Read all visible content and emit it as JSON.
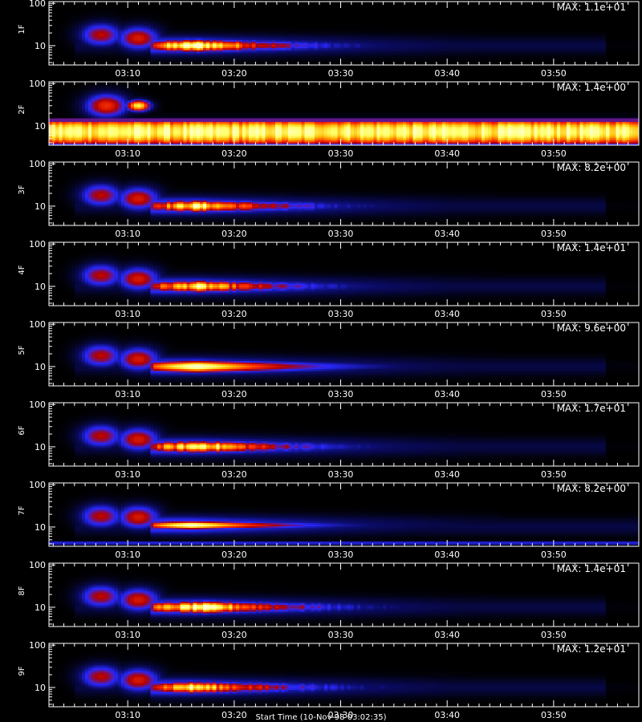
{
  "chart_data": {
    "type": "heatmap",
    "x_tick_labels": [
      "03:10",
      "03:20",
      "03:30",
      "03:40",
      "03:50"
    ],
    "x_tick_values_min": [
      10,
      20,
      30,
      40,
      50
    ],
    "x_range_min": [
      2.6,
      58.0
    ],
    "x_axis_title": "Start Time (10-Nov-98 03:02:35)",
    "y_scale": "log",
    "y_range": [
      3.5,
      110
    ],
    "y_tick_labels": [
      "100",
      "10"
    ],
    "y_tick_values": [
      100,
      10
    ],
    "colormap": [
      "#000000",
      "#0a0a60",
      "#2828ff",
      "#b00000",
      "#ff3000",
      "#ffb000",
      "#ffff60",
      "#ffffd0"
    ],
    "panels": [
      {
        "label": "1F",
        "max_label": "MAX: 1.1e+01",
        "max": 11,
        "features": [
          {
            "type": "faint_bg",
            "y_center": 10,
            "end": 55
          },
          {
            "type": "pre_blob",
            "t": 7.5,
            "y": 18,
            "intensity": 0.45
          },
          {
            "type": "pre_blob",
            "t": 11.0,
            "y": 15,
            "intensity": 0.5
          },
          {
            "type": "flare",
            "t_start": 12.0,
            "t_peak": 16.5,
            "t_end": 30.0,
            "y_center": 10,
            "intensity": 0.92,
            "vstreaks": true
          }
        ]
      },
      {
        "label": "2F",
        "max_label": "MAX: 1.4e+00",
        "max": 1.4,
        "features": [
          {
            "type": "faint_bg",
            "y_center": 10,
            "end": 58
          },
          {
            "type": "pre_blob",
            "t": 8.0,
            "y": 30,
            "intensity": 0.55
          },
          {
            "type": "hot_blob",
            "t": 11.0,
            "y": 30,
            "intensity": 0.85
          },
          {
            "type": "band",
            "y_low": 4.0,
            "y_high": 13,
            "intensity": 0.9
          }
        ]
      },
      {
        "label": "3F",
        "max_label": "MAX: 8.2e+00",
        "max": 8.2,
        "features": [
          {
            "type": "faint_bg",
            "y_center": 10,
            "end": 55
          },
          {
            "type": "pre_blob",
            "t": 7.5,
            "y": 18,
            "intensity": 0.45
          },
          {
            "type": "pre_blob",
            "t": 11.0,
            "y": 15,
            "intensity": 0.5
          },
          {
            "type": "flare",
            "t_start": 12.0,
            "t_peak": 16.5,
            "t_end": 31.0,
            "y_center": 10,
            "intensity": 0.82,
            "vstreaks": true
          }
        ]
      },
      {
        "label": "4F",
        "max_label": "MAX: 1.4e+01",
        "max": 14,
        "features": [
          {
            "type": "faint_bg",
            "y_center": 10,
            "end": 55
          },
          {
            "type": "pre_blob",
            "t": 7.5,
            "y": 18,
            "intensity": 0.45
          },
          {
            "type": "pre_blob",
            "t": 11.0,
            "y": 15,
            "intensity": 0.5
          },
          {
            "type": "flare",
            "t_start": 12.0,
            "t_peak": 16.5,
            "t_end": 31.0,
            "y_center": 10,
            "intensity": 0.78,
            "vstreaks": true
          }
        ]
      },
      {
        "label": "5F",
        "max_label": "MAX: 9.6e+00",
        "max": 9.6,
        "features": [
          {
            "type": "faint_bg",
            "y_center": 10,
            "end": 55
          },
          {
            "type": "pre_blob",
            "t": 7.5,
            "y": 18,
            "intensity": 0.45
          },
          {
            "type": "pre_blob",
            "t": 11.0,
            "y": 15,
            "intensity": 0.5
          },
          {
            "type": "flare",
            "t_start": 12.0,
            "t_peak": 16.5,
            "t_end": 32.0,
            "y_center": 10,
            "intensity": 0.9,
            "vstreaks": false
          }
        ]
      },
      {
        "label": "6F",
        "max_label": "MAX: 1.7e+01",
        "max": 17,
        "features": [
          {
            "type": "faint_bg",
            "y_center": 10,
            "end": 55
          },
          {
            "type": "pre_blob",
            "t": 7.5,
            "y": 18,
            "intensity": 0.45
          },
          {
            "type": "pre_blob",
            "t": 11.0,
            "y": 15,
            "intensity": 0.5
          },
          {
            "type": "flare",
            "t_start": 12.0,
            "t_peak": 17.0,
            "t_end": 31.0,
            "y_center": 10,
            "intensity": 0.85,
            "vstreaks": true
          }
        ]
      },
      {
        "label": "7F",
        "max_label": "MAX: 8.2e+00",
        "max": 8.2,
        "features": [
          {
            "type": "faint_bg",
            "y_center": 10,
            "end": 58
          },
          {
            "type": "pre_blob",
            "t": 7.5,
            "y": 18,
            "intensity": 0.45
          },
          {
            "type": "pre_blob",
            "t": 11.0,
            "y": 17,
            "intensity": 0.5
          },
          {
            "type": "flare",
            "t_start": 12.0,
            "t_peak": 16.0,
            "t_end": 30.0,
            "y_center": 11,
            "intensity": 0.9,
            "vstreaks": false,
            "thin": true
          },
          {
            "type": "low_band",
            "y": 4.2,
            "intensity": 0.3
          }
        ]
      },
      {
        "label": "8F",
        "max_label": "MAX: 1.4e+01",
        "max": 14,
        "features": [
          {
            "type": "faint_bg",
            "y_center": 10,
            "end": 55
          },
          {
            "type": "pre_blob",
            "t": 7.5,
            "y": 18,
            "intensity": 0.45
          },
          {
            "type": "pre_blob",
            "t": 11.0,
            "y": 15,
            "intensity": 0.5
          },
          {
            "type": "flare",
            "t_start": 12.0,
            "t_peak": 17.0,
            "t_end": 32.0,
            "y_center": 10,
            "intensity": 0.88,
            "vstreaks": true
          }
        ]
      },
      {
        "label": "9F",
        "max_label": "MAX: 1.2e+01",
        "max": 12,
        "features": [
          {
            "type": "faint_bg",
            "y_center": 10,
            "end": 55
          },
          {
            "type": "pre_blob",
            "t": 7.5,
            "y": 18,
            "intensity": 0.45
          },
          {
            "type": "pre_blob",
            "t": 11.0,
            "y": 15,
            "intensity": 0.5
          },
          {
            "type": "flare",
            "t_start": 12.0,
            "t_peak": 16.0,
            "t_end": 32.0,
            "y_center": 10,
            "intensity": 0.8,
            "vstreaks": true
          }
        ]
      }
    ]
  }
}
